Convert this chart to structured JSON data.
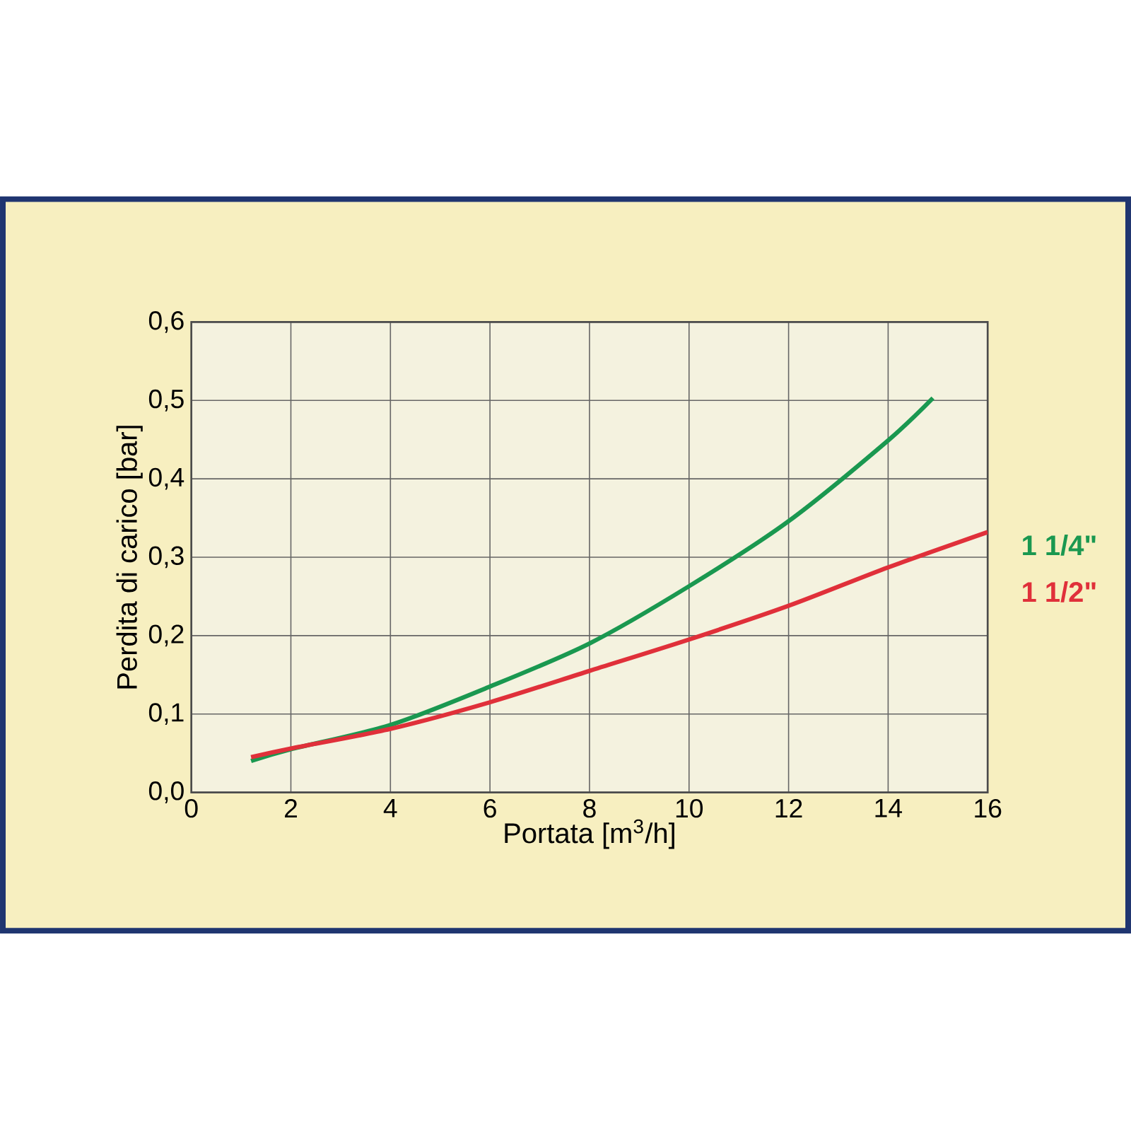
{
  "chart_data": {
    "type": "line",
    "xlabel": "Portata [m$^{3}$/h]",
    "ylabel": "Perdita di carico [bar]",
    "xlim": [
      0,
      16
    ],
    "xticks": [
      0,
      2,
      4,
      6,
      8,
      10,
      12,
      14,
      16
    ],
    "ylim": [
      0,
      0.6
    ],
    "yticks": [
      {
        "value": 0,
        "label": "0,0"
      },
      {
        "value": 0.1,
        "label": "0,1"
      },
      {
        "value": 0.2,
        "label": "0,2"
      },
      {
        "value": 0.3,
        "label": "0,3"
      },
      {
        "value": 0.4,
        "label": "0,4"
      },
      {
        "value": 0.5,
        "label": "0,5"
      },
      {
        "value": 0.6,
        "label": "0,6"
      }
    ],
    "grid": true,
    "marker": "none",
    "line_style": "solid",
    "series": [
      {
        "name": "1 1/4\"",
        "color": "#1a9850",
        "x": [
          1.2,
          2,
          4,
          6,
          8,
          10,
          12,
          14,
          14.9
        ],
        "values": [
          0.04,
          0.055,
          0.086,
          0.135,
          0.19,
          0.263,
          0.346,
          0.449,
          0.503
        ]
      },
      {
        "name": "1 1/2\"",
        "color": "#e0303a",
        "x": [
          1.2,
          2,
          4,
          6,
          8,
          10,
          12,
          14,
          16
        ],
        "values": [
          0.045,
          0.056,
          0.081,
          0.115,
          0.155,
          0.195,
          0.238,
          0.287,
          0.332
        ]
      }
    ]
  }
}
